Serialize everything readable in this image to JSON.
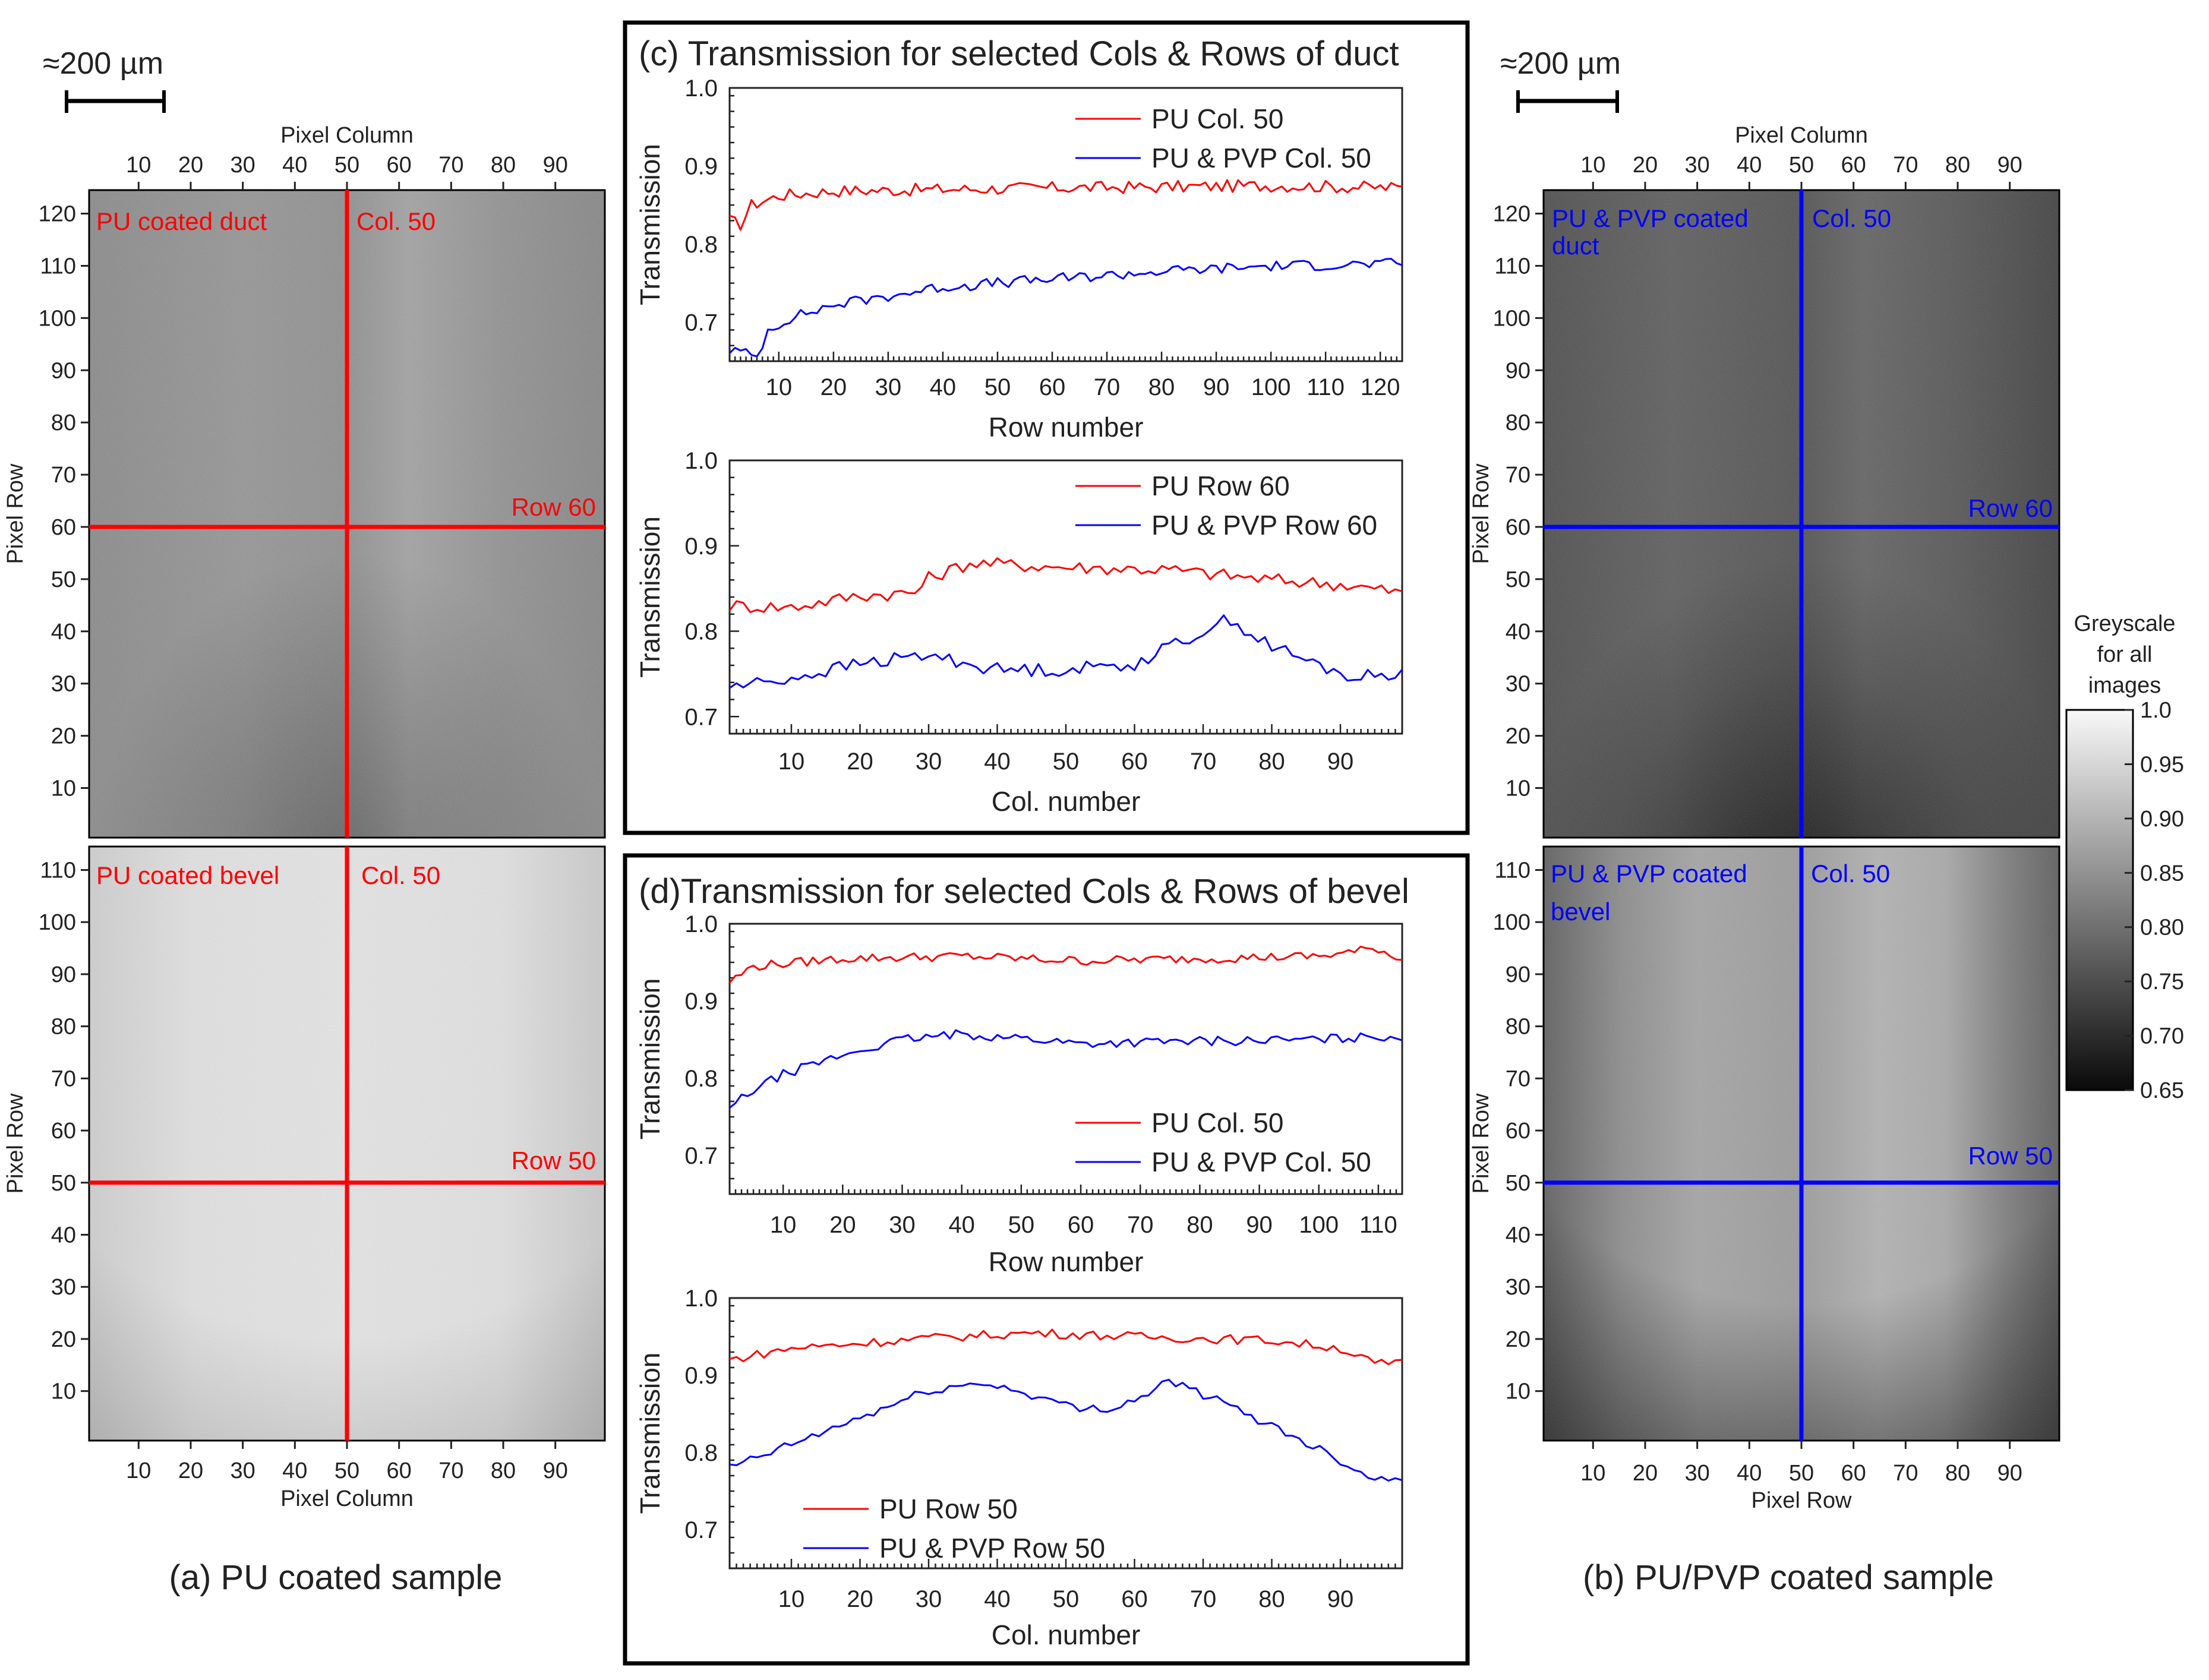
{
  "greyscale": {
    "low": "#0a0a0a",
    "high": "#f8f8f8"
  },
  "colors": {
    "pu": "#ff0000",
    "pvp": "#0000ff",
    "frame": "#000000",
    "axis": "#222222"
  },
  "scale_bars": [
    {
      "label": "≈200 µm"
    },
    {
      "label": "≈200 µm"
    }
  ],
  "sample_labels": {
    "a": "(a) PU coated sample",
    "b": "(b) PU/PVP coated sample"
  },
  "images": [
    {
      "id": "a-duct",
      "label": "PU coated duct",
      "col_label": "Col. 50",
      "row_label": "Row 60",
      "color": "#ff0000",
      "xlabel": "Pixel Column",
      "ylabel": "Pixel Row",
      "rows": 124,
      "cols": 99,
      "col_line": 50,
      "row_line": 60,
      "xticks": [
        10,
        20,
        30,
        40,
        50,
        60,
        70,
        80,
        90
      ],
      "yticks": [
        10,
        20,
        30,
        40,
        50,
        60,
        70,
        80,
        90,
        100,
        110,
        120
      ]
    },
    {
      "id": "a-bevel",
      "label": "PU coated bevel",
      "col_label": "Col. 50",
      "row_label": "Row 50",
      "color": "#ff0000",
      "xlabel": "Pixel Column",
      "ylabel": "Pixel Row",
      "rows": 114,
      "cols": 99,
      "col_line": 50,
      "row_line": 50,
      "xticks": [
        10,
        20,
        30,
        40,
        50,
        60,
        70,
        80,
        90
      ],
      "yticks": [
        10,
        20,
        30,
        40,
        50,
        60,
        70,
        80,
        90,
        100,
        110
      ]
    },
    {
      "id": "b-duct",
      "label": "PU & PVP coated duct",
      "col_label": "Col. 50",
      "row_label": "Row 60",
      "color": "#0000ff",
      "xlabel": "Pixel Column",
      "ylabel": "Pixel Row",
      "rows": 124,
      "cols": 99,
      "col_line": 50,
      "row_line": 60,
      "xticks": [
        10,
        20,
        30,
        40,
        50,
        60,
        70,
        80,
        90
      ],
      "yticks": [
        10,
        20,
        30,
        40,
        50,
        60,
        70,
        80,
        90,
        100,
        110,
        120
      ]
    },
    {
      "id": "b-bevel",
      "label": "PU & PVP coated bevel",
      "col_label": "Col. 50",
      "row_label": "Row 50",
      "color": "#0000ff",
      "xlabel": "Pixel Row",
      "ylabel": "Pixel Row",
      "rows": 114,
      "cols": 99,
      "col_line": 50,
      "row_line": 50,
      "xticks": [
        10,
        20,
        30,
        40,
        50,
        60,
        70,
        80,
        90
      ],
      "yticks": [
        10,
        20,
        30,
        40,
        50,
        60,
        70,
        80,
        90,
        100,
        110
      ]
    }
  ],
  "colorbar": {
    "title": [
      "Greyscale",
      "for all",
      "images"
    ],
    "ticks": [
      "1.0",
      "0.95",
      "0.90",
      "0.85",
      "0.80",
      "0.75",
      "0.70",
      "0.65"
    ],
    "range": [
      0.65,
      1.0
    ]
  },
  "panel_titles": {
    "c": "(c) Transmission for selected Cols & Rows of duct",
    "d": "(d)Transmission for selected Cols & Rows of bevel"
  },
  "chart_data": [
    {
      "id": "c-top",
      "type": "line",
      "title": "",
      "xlabel": "Row number",
      "ylabel": "Transmission",
      "xlim": [
        1,
        124
      ],
      "ylim": [
        0.65,
        1.0
      ],
      "xticks": [
        10,
        20,
        30,
        40,
        50,
        60,
        70,
        80,
        90,
        100,
        110,
        120
      ],
      "yticks": [
        "0.7",
        "0.8",
        "0.9",
        "1.0"
      ],
      "legend": "top-right",
      "series": [
        {
          "name": "PU Col. 50",
          "color": "#ff0000",
          "anchors": [
            [
              1,
              0.83
            ],
            [
              3,
              0.825
            ],
            [
              5,
              0.85
            ],
            [
              10,
              0.862
            ],
            [
              20,
              0.868
            ],
            [
              40,
              0.87
            ],
            [
              60,
              0.872
            ],
            [
              80,
              0.873
            ],
            [
              100,
              0.875
            ],
            [
              124,
              0.872
            ]
          ],
          "noise": 0.008
        },
        {
          "name": "PU & PVP Col. 50",
          "color": "#0000ff",
          "anchors": [
            [
              1,
              0.665
            ],
            [
              4,
              0.66
            ],
            [
              6,
              0.655
            ],
            [
              8,
              0.69
            ],
            [
              12,
              0.705
            ],
            [
              20,
              0.722
            ],
            [
              40,
              0.745
            ],
            [
              60,
              0.755
            ],
            [
              80,
              0.765
            ],
            [
              100,
              0.772
            ],
            [
              124,
              0.775
            ]
          ],
          "noise": 0.007
        }
      ]
    },
    {
      "id": "c-bot",
      "type": "line",
      "title": "",
      "xlabel": "Col. number",
      "ylabel": "Transmission",
      "xlim": [
        1,
        99
      ],
      "ylim": [
        0.68,
        1.0
      ],
      "xticks": [
        10,
        20,
        30,
        40,
        50,
        60,
        70,
        80,
        90
      ],
      "yticks": [
        "0.7",
        "0.8",
        "0.9",
        "1.0"
      ],
      "legend": "top-right",
      "series": [
        {
          "name": "PU Row 60",
          "color": "#ff0000",
          "anchors": [
            [
              1,
              0.83
            ],
            [
              10,
              0.828
            ],
            [
              20,
              0.842
            ],
            [
              28,
              0.845
            ],
            [
              30,
              0.862
            ],
            [
              36,
              0.88
            ],
            [
              50,
              0.875
            ],
            [
              65,
              0.872
            ],
            [
              80,
              0.86
            ],
            [
              90,
              0.855
            ],
            [
              99,
              0.845
            ]
          ],
          "noise": 0.008
        },
        {
          "name": "PU & PVP Row 60",
          "color": "#0000ff",
          "anchors": [
            [
              1,
              0.735
            ],
            [
              10,
              0.745
            ],
            [
              20,
              0.762
            ],
            [
              30,
              0.772
            ],
            [
              40,
              0.755
            ],
            [
              50,
              0.755
            ],
            [
              60,
              0.762
            ],
            [
              70,
              0.8
            ],
            [
              74,
              0.815
            ],
            [
              78,
              0.79
            ],
            [
              85,
              0.765
            ],
            [
              92,
              0.745
            ],
            [
              99,
              0.752
            ]
          ],
          "noise": 0.008
        }
      ]
    },
    {
      "id": "d-top",
      "type": "line",
      "title": "",
      "xlabel": "Row number",
      "ylabel": "Transmission",
      "xlim": [
        1,
        114
      ],
      "ylim": [
        0.65,
        1.0
      ],
      "xticks": [
        10,
        20,
        30,
        40,
        50,
        60,
        70,
        80,
        90,
        100,
        110
      ],
      "yticks": [
        "0.7",
        "0.8",
        "0.9",
        "1.0"
      ],
      "legend": "bottom-right",
      "series": [
        {
          "name": "PU Col. 50",
          "color": "#ff0000",
          "anchors": [
            [
              1,
              0.925
            ],
            [
              5,
              0.945
            ],
            [
              20,
              0.955
            ],
            [
              40,
              0.958
            ],
            [
              60,
              0.952
            ],
            [
              80,
              0.955
            ],
            [
              100,
              0.958
            ],
            [
              110,
              0.968
            ],
            [
              114,
              0.952
            ]
          ],
          "noise": 0.006
        },
        {
          "name": "PU & PVP Col. 50",
          "color": "#0000ff",
          "anchors": [
            [
              1,
              0.76
            ],
            [
              4,
              0.78
            ],
            [
              10,
              0.805
            ],
            [
              20,
              0.83
            ],
            [
              30,
              0.85
            ],
            [
              40,
              0.857
            ],
            [
              50,
              0.852
            ],
            [
              60,
              0.845
            ],
            [
              80,
              0.848
            ],
            [
              100,
              0.85
            ],
            [
              114,
              0.855
            ]
          ],
          "noise": 0.006
        }
      ]
    },
    {
      "id": "d-bot",
      "type": "line",
      "title": "",
      "xlabel": "Col. number",
      "ylabel": "Transmission",
      "xlim": [
        1,
        99
      ],
      "ylim": [
        0.65,
        1.0
      ],
      "xticks": [
        10,
        20,
        30,
        40,
        50,
        60,
        70,
        80,
        90
      ],
      "yticks": [
        "0.7",
        "0.8",
        "0.9",
        "1.0"
      ],
      "legend": "bottom-left",
      "series": [
        {
          "name": "PU Row 50",
          "color": "#ff0000",
          "anchors": [
            [
              1,
              0.92
            ],
            [
              10,
              0.935
            ],
            [
              30,
              0.948
            ],
            [
              45,
              0.955
            ],
            [
              60,
              0.95
            ],
            [
              80,
              0.945
            ],
            [
              90,
              0.935
            ],
            [
              95,
              0.915
            ],
            [
              99,
              0.915
            ]
          ],
          "noise": 0.006
        },
        {
          "name": "PU & PVP Row 50",
          "color": "#0000ff",
          "anchors": [
            [
              1,
              0.78
            ],
            [
              10,
              0.81
            ],
            [
              20,
              0.845
            ],
            [
              30,
              0.88
            ],
            [
              38,
              0.89
            ],
            [
              45,
              0.875
            ],
            [
              52,
              0.855
            ],
            [
              58,
              0.86
            ],
            [
              62,
              0.878
            ],
            [
              65,
              0.893
            ],
            [
              70,
              0.875
            ],
            [
              80,
              0.835
            ],
            [
              88,
              0.8
            ],
            [
              95,
              0.765
            ],
            [
              99,
              0.77
            ]
          ],
          "noise": 0.006
        }
      ]
    }
  ]
}
